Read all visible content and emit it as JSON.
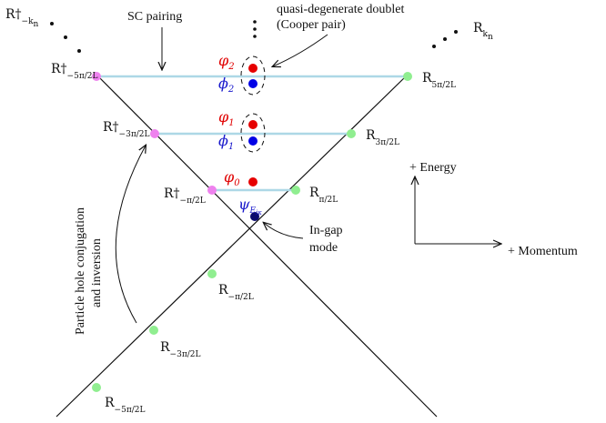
{
  "diagram": {
    "title_sc": "SC pairing",
    "doublet_line1": "quasi-degenerate doublet",
    "doublet_line2": "(Cooper pair)",
    "particle_hole_line1": "Particle hole conjugation",
    "particle_hole_line2": "and inversion",
    "ingap_line1": "In-gap",
    "ingap_line2": "mode",
    "energy_label": "+ Energy",
    "momentum_label": "+ Momentum",
    "vdots": "⋮",
    "states": {
      "phi2_red": "φ",
      "phi2_red_sub": "2",
      "phi2_blue": "ϕ",
      "phi2_blue_sub": "2",
      "phi1_red": "φ",
      "phi1_red_sub": "1",
      "phi1_blue": "ϕ",
      "phi1_blue_sub": "1",
      "phi0_red": "φ",
      "phi0_red_sub": "0",
      "psi": "ψ",
      "psi_sub": "E",
      "psi_subsub": "iκ"
    },
    "left_labels": {
      "rkn_dag": "R†",
      "rkn_dag_sub": "−k",
      "rkn_dag_subsub": "n",
      "r5_dag": "R†",
      "r5_dag_sub": "−5π/2L",
      "r3_dag": "R†",
      "r3_dag_sub": "−3π/2L",
      "r1_dag": "R†",
      "r1_dag_sub": "−π/2L"
    },
    "right_labels": {
      "rkn": "R",
      "rkn_sub": "k",
      "rkn_subsub": "n",
      "r5": "R",
      "r5_sub": "5π/2L",
      "r3": "R",
      "r3_sub": "3π/2L",
      "r1": "R",
      "r1_sub": "π/2L"
    },
    "lower_labels": {
      "rm1": "R",
      "rm1_sub": "−π/2L",
      "rm3": "R",
      "rm3_sub": "−3π/2L",
      "rm5": "R",
      "rm5_sub": "−5π/2L"
    },
    "colors": {
      "line": "#111111",
      "pairing_line": "#add8e6",
      "left_dot": "#ee82ee",
      "right_dot": "#90ee90",
      "red_state": "#e60000",
      "blue_state": "#0000e6",
      "ingap_state": "#0b0b6e",
      "blue_text": "#1a1acc",
      "red_text": "#e00000"
    }
  }
}
